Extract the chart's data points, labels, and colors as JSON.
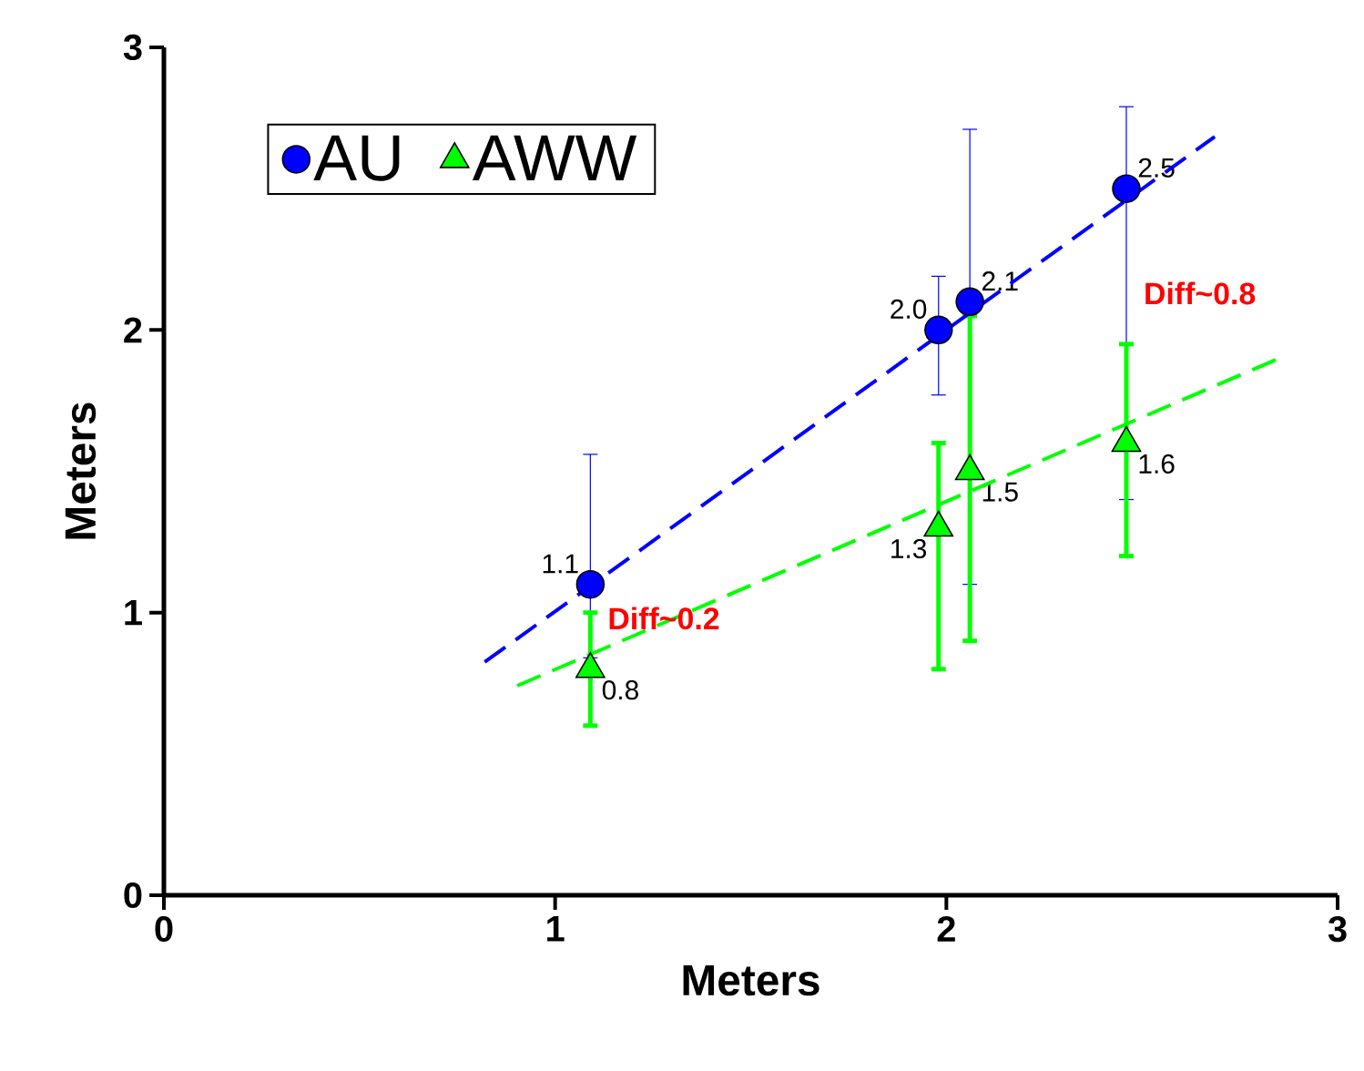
{
  "chart_data": {
    "type": "scatter",
    "xlabel": "Meters",
    "ylabel": "Meters",
    "xlim": [
      0,
      3
    ],
    "ylim": [
      0,
      3
    ],
    "xticks": [
      0,
      1,
      2,
      3
    ],
    "yticks": [
      0,
      1,
      2,
      3
    ],
    "grid": false,
    "legend": "top left",
    "series": [
      {
        "name": "AU",
        "color": "#0000ff",
        "marker": "circle",
        "x": [
          1.09,
          1.98,
          2.06,
          2.46
        ],
        "values": [
          1.1,
          2.0,
          2.1,
          2.5
        ],
        "value_labels": [
          "1.1",
          "2.0",
          "2.1",
          "2.5"
        ],
        "errors": [
          [
            0.84,
            1.56
          ],
          [
            1.77,
            2.19
          ],
          [
            1.1,
            2.71
          ],
          [
            1.4,
            2.79
          ]
        ]
      },
      {
        "name": "AWW",
        "color": "#00ff00",
        "marker": "triangle",
        "x": [
          1.09,
          1.98,
          2.06,
          2.46
        ],
        "values": [
          0.8,
          1.3,
          1.5,
          1.6
        ],
        "value_labels": [
          "0.8",
          "1.3",
          "1.5",
          "1.6"
        ],
        "errors": [
          [
            0.6,
            1.0
          ],
          [
            0.8,
            1.6
          ],
          [
            0.9,
            2.05
          ],
          [
            1.2,
            1.95
          ]
        ]
      },
      {
        "type": "line",
        "color": "#0000ff",
        "line_style": "dashed",
        "marker": "none",
        "x": [
          0.82,
          2.686
        ],
        "values": [
          0.825,
          2.684
        ]
      },
      {
        "type": "line",
        "color": "#00ff00",
        "line_style": "dashed",
        "marker": "none",
        "x": [
          0.903,
          2.853
        ],
        "values": [
          0.741,
          1.901
        ]
      }
    ],
    "annotations": [
      {
        "text": "Diff~0.2",
        "x": 1.09,
        "y": 0.98
      },
      {
        "text": "Diff~0.8",
        "x": 2.46,
        "y": 2.13
      }
    ]
  }
}
